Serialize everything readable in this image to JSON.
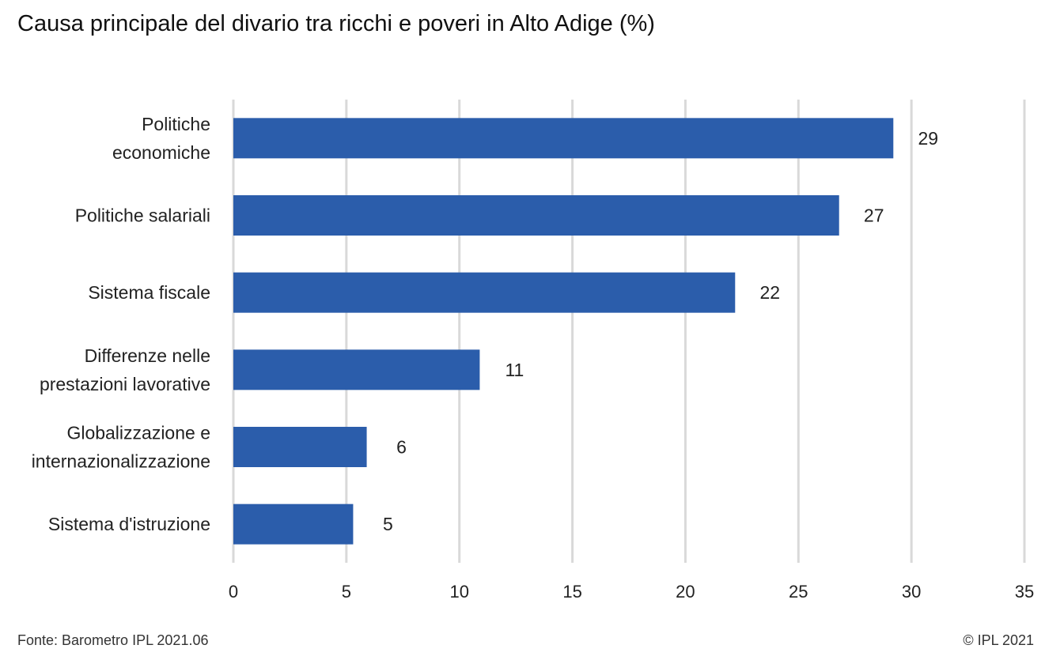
{
  "chart_data": {
    "type": "bar",
    "orientation": "horizontal",
    "title": "Causa principale del divario tra ricchi e poveri in Alto Adige (%)",
    "categories": [
      [
        "Politiche",
        "economiche"
      ],
      [
        "Politiche salariali"
      ],
      [
        "Sistema fiscale"
      ],
      [
        "Differenze nelle",
        "prestazioni lavorative"
      ],
      [
        "Globalizzazione e",
        "internazionalizzazione"
      ],
      [
        "Sistema d'istruzione"
      ]
    ],
    "values": [
      29.2,
      26.8,
      22.2,
      10.9,
      5.9,
      5.3
    ],
    "data_labels": [
      "29",
      "27",
      "22",
      "11",
      "6",
      "5"
    ],
    "xlim": [
      0,
      35
    ],
    "xticks": [
      0,
      5,
      10,
      15,
      20,
      25,
      30,
      35
    ],
    "grid": true,
    "bar_color": "#2b5dab",
    "grid_color": "#d9d9d9"
  },
  "footer": {
    "source": "Fonte: Barometro IPL 2021.06",
    "copyright": "© IPL 2021"
  }
}
